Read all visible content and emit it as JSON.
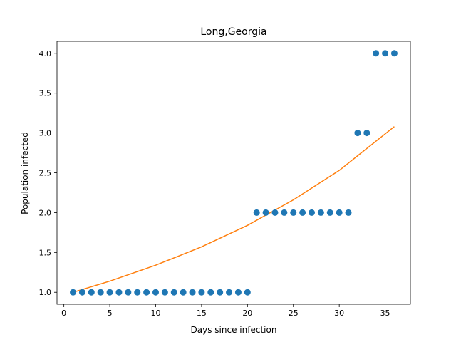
{
  "chart_data": {
    "type": "scatter",
    "title": "Long,Georgia",
    "xlabel": "Days since infection",
    "ylabel": "Population infected",
    "xlim": [
      -0.75,
      37.75
    ],
    "ylim": [
      0.85,
      4.15
    ],
    "xticks": [
      0,
      5,
      10,
      15,
      20,
      25,
      30,
      35
    ],
    "yticks": [
      1.0,
      1.5,
      2.0,
      2.5,
      3.0,
      3.5,
      4.0
    ],
    "ytick_labels": [
      "1.0",
      "1.5",
      "2.0",
      "2.5",
      "3.0",
      "3.5",
      "4.0"
    ],
    "grid": false,
    "series": [
      {
        "kind": "scatter",
        "color": "#1f77b4",
        "x": [
          1,
          2,
          3,
          4,
          5,
          6,
          7,
          8,
          9,
          10,
          11,
          12,
          13,
          14,
          15,
          16,
          17,
          18,
          19,
          20,
          21,
          22,
          23,
          24,
          25,
          26,
          27,
          28,
          29,
          30,
          31,
          32,
          33,
          34,
          35,
          36
        ],
        "y": [
          1,
          1,
          1,
          1,
          1,
          1,
          1,
          1,
          1,
          1,
          1,
          1,
          1,
          1,
          1,
          1,
          1,
          1,
          1,
          1,
          2,
          2,
          2,
          2,
          2,
          2,
          2,
          2,
          2,
          2,
          2,
          3,
          3,
          4,
          4,
          4
        ]
      },
      {
        "kind": "line",
        "color": "#ff7f0e",
        "x": [
          1,
          5,
          10,
          15,
          20,
          25,
          30,
          36
        ],
        "y": [
          1.0,
          1.14,
          1.34,
          1.57,
          1.84,
          2.16,
          2.53,
          3.08
        ]
      }
    ]
  }
}
